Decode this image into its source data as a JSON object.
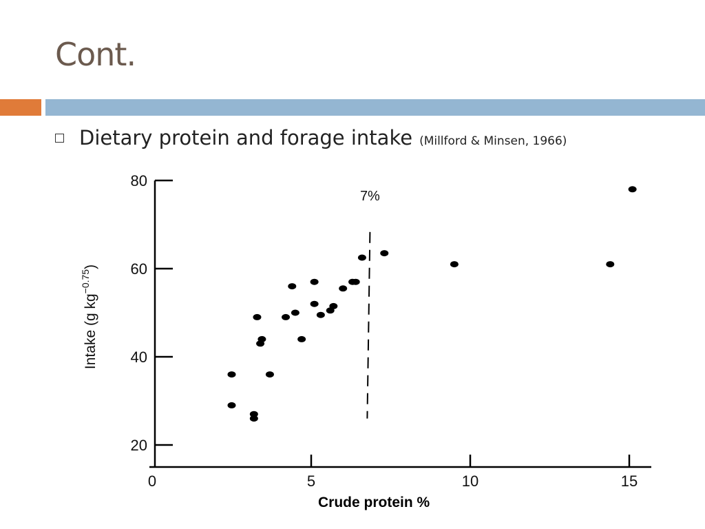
{
  "slide": {
    "title": "Cont.",
    "bullet_text": "Dietary protein and forage intake",
    "bullet_citation": "(Millford & Minsen, 1966)"
  },
  "colors": {
    "accent_orange": "#e07b39",
    "accent_blue": "#94b6d2",
    "title": "#6b5a4e",
    "marks": "#000000"
  },
  "chart_data": {
    "type": "scatter",
    "title": "",
    "xlabel": "Crude protein %",
    "ylabel": "Intake (g kg",
    "ylabel_exponent": "−0.75",
    "ylabel_close": ")",
    "xlim": [
      0,
      15.5
    ],
    "ylim": [
      20,
      80
    ],
    "x_ticks": [
      0,
      5,
      10,
      15
    ],
    "x_tick_labels": [
      "0",
      "5",
      "10",
      "15"
    ],
    "y_ticks": [
      20,
      40,
      60,
      80
    ],
    "y_tick_labels": [
      "20",
      "40",
      "60",
      "80"
    ],
    "grid": false,
    "threshold": {
      "x": 7,
      "label": "7%",
      "y_from": 26,
      "y_to": 73
    },
    "points": [
      {
        "x": 2.5,
        "y": 36
      },
      {
        "x": 2.5,
        "y": 29
      },
      {
        "x": 3.2,
        "y": 27
      },
      {
        "x": 3.2,
        "y": 26
      },
      {
        "x": 3.3,
        "y": 49
      },
      {
        "x": 3.4,
        "y": 43
      },
      {
        "x": 3.45,
        "y": 44
      },
      {
        "x": 3.7,
        "y": 36
      },
      {
        "x": 4.2,
        "y": 49
      },
      {
        "x": 4.4,
        "y": 56
      },
      {
        "x": 4.5,
        "y": 50
      },
      {
        "x": 4.7,
        "y": 44
      },
      {
        "x": 5.1,
        "y": 57
      },
      {
        "x": 5.1,
        "y": 52
      },
      {
        "x": 5.3,
        "y": 49.5
      },
      {
        "x": 5.6,
        "y": 50.5
      },
      {
        "x": 5.7,
        "y": 51.5
      },
      {
        "x": 6.0,
        "y": 55.5
      },
      {
        "x": 6.3,
        "y": 57
      },
      {
        "x": 6.4,
        "y": 57
      },
      {
        "x": 6.6,
        "y": 62.5
      },
      {
        "x": 7.3,
        "y": 63.5
      },
      {
        "x": 9.5,
        "y": 61
      },
      {
        "x": 14.4,
        "y": 61
      },
      {
        "x": 15.1,
        "y": 78
      }
    ]
  }
}
